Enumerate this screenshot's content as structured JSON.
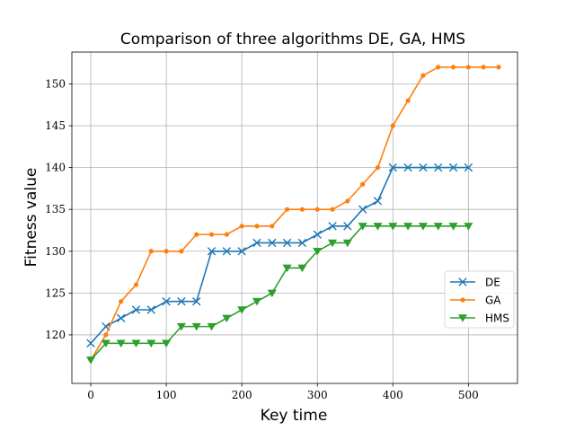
{
  "chart_data": {
    "type": "line",
    "title": "Comparison of three algorithms DE, GA, HMS",
    "xlabel": "Key time",
    "ylabel": "Fitness value",
    "xlim": [
      -25,
      565
    ],
    "ylim": [
      114.2,
      153.8
    ],
    "xticks": [
      0,
      100,
      200,
      300,
      400,
      500
    ],
    "yticks": [
      120,
      125,
      130,
      135,
      140,
      145,
      150
    ],
    "grid": true,
    "legend": "center-right",
    "series": [
      {
        "name": "DE",
        "color": "#1f77b4",
        "marker": "x",
        "x": [
          0,
          20,
          40,
          60,
          80,
          100,
          120,
          140,
          160,
          180,
          200,
          220,
          240,
          260,
          280,
          300,
          320,
          340,
          360,
          380,
          400,
          420,
          440,
          460,
          480,
          500
        ],
        "y": [
          119,
          121,
          122,
          123,
          123,
          124,
          124,
          124,
          130,
          130,
          130,
          131,
          131,
          131,
          131,
          132,
          133,
          133,
          135,
          136,
          140,
          140,
          140,
          140,
          140,
          140
        ]
      },
      {
        "name": "GA",
        "color": "#ff7f0e",
        "marker": "dot",
        "x": [
          0,
          20,
          40,
          60,
          80,
          100,
          120,
          140,
          160,
          180,
          200,
          220,
          240,
          260,
          280,
          300,
          320,
          340,
          360,
          380,
          400,
          420,
          440,
          460,
          480,
          500,
          520,
          540
        ],
        "y": [
          117,
          120,
          124,
          126,
          130,
          130,
          130,
          132,
          132,
          132,
          133,
          133,
          133,
          135,
          135,
          135,
          135,
          136,
          138,
          140,
          145,
          148,
          151,
          152,
          152,
          152,
          152,
          152
        ]
      },
      {
        "name": "HMS",
        "color": "#2ca02c",
        "marker": "triangle-down",
        "x": [
          0,
          20,
          40,
          60,
          80,
          100,
          120,
          140,
          160,
          180,
          200,
          220,
          240,
          260,
          280,
          300,
          320,
          340,
          360,
          380,
          400,
          420,
          440,
          460,
          480,
          500
        ],
        "y": [
          117,
          119,
          119,
          119,
          119,
          119,
          121,
          121,
          121,
          122,
          123,
          124,
          125,
          128,
          128,
          130,
          131,
          131,
          133,
          133,
          133,
          133,
          133,
          133,
          133,
          133
        ]
      }
    ]
  }
}
